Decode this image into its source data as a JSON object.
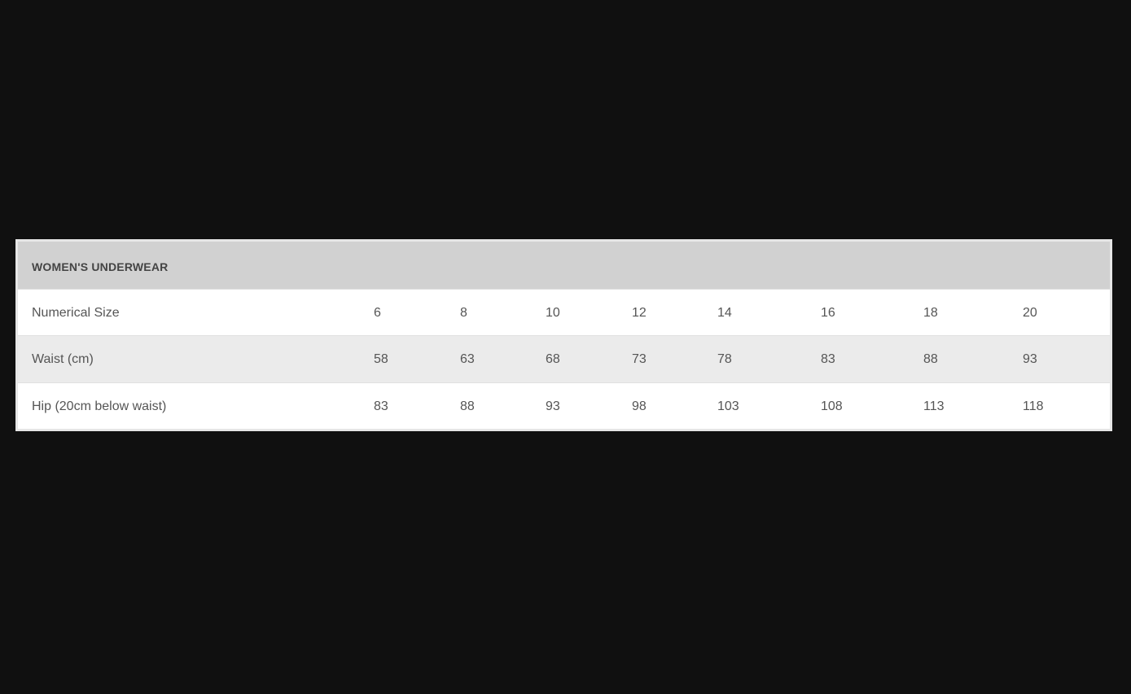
{
  "table": {
    "title": "WOMEN'S UNDERWEAR",
    "rows": [
      {
        "label": "Numerical Size",
        "values": [
          "6",
          "8",
          "10",
          "12",
          "14",
          "16",
          "18",
          "20"
        ]
      },
      {
        "label": "Waist (cm)",
        "values": [
          "58",
          "63",
          "68",
          "73",
          "78",
          "83",
          "88",
          "93"
        ]
      },
      {
        "label": "Hip (20cm below waist)",
        "values": [
          "83",
          "88",
          "93",
          "98",
          "103",
          "108",
          "113",
          "118"
        ]
      }
    ]
  },
  "colors": {
    "background": "#101010",
    "header": "#d1d1d1",
    "alt_row": "#ebebeb",
    "text": "#555555"
  }
}
